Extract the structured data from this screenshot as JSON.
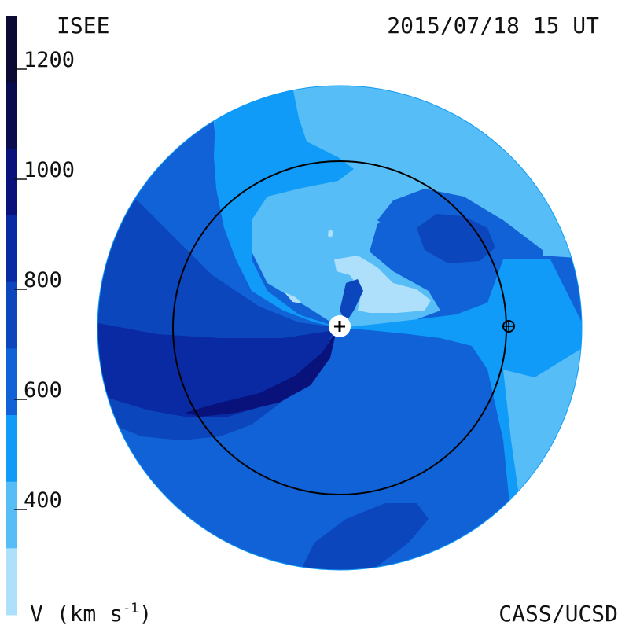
{
  "header": {
    "left_title": "ISEE",
    "right_title": "2015/07/18 15 UT"
  },
  "footer": {
    "unit_label_prefix": "V (km s",
    "unit_label_exponent": "-1",
    "unit_label_suffix": ")",
    "credit": "CASS/UCSD"
  },
  "colorbar": {
    "ticks": [
      "1200",
      "1000",
      "800",
      "600",
      "400"
    ],
    "band_colors": [
      "#0a0a35",
      "#0a0c50",
      "#08127a",
      "#0a2aa3",
      "#0c46bc",
      "#1062d6",
      "#0f9bf7",
      "#57bdf6",
      "#aee0fb"
    ]
  },
  "map": {
    "fill_colors": {
      "lightest": "#aee0fb",
      "light": "#57bdf6",
      "sky": "#0f9bf7",
      "medium": "#1062d6",
      "deep": "#0c46bc",
      "darker": "#0a2aa3"
    },
    "earth_marker": "earth-symbol",
    "sun_marker": "sun-plus-symbol"
  }
}
